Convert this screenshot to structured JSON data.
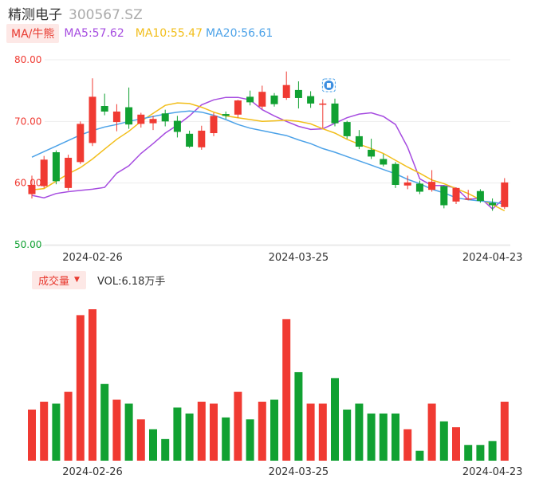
{
  "stock": {
    "name": "精测电子",
    "code": "300567.SZ"
  },
  "ma": {
    "tag": "MA/牛熊",
    "ma5": "MA5:57.62",
    "ma10": "MA10:55.47",
    "ma20": "MA20:56.61"
  },
  "volume": {
    "tag": "成交量",
    "label": "VOL:6.18万手"
  },
  "colors": {
    "up": "#f03a32",
    "down": "#11a132",
    "ma5": "#a64ce0",
    "ma10": "#f2be1a",
    "ma20": "#4ca2e8",
    "ma_tag_bg": "#fde8e6",
    "ma_tag_text": "#e83a30"
  },
  "chart_data": [
    {
      "type": "candlestick",
      "y_tick_labels": [
        "80.00",
        "70.00",
        "60.00",
        "50.00"
      ],
      "y_ticks": [
        80,
        70,
        60,
        50
      ],
      "ylim": [
        50,
        80
      ],
      "x_tick_labels": [
        "2024-02-26",
        "2024-03-25",
        "2024-04-23"
      ],
      "x_tick_indices": [
        5,
        22,
        38
      ],
      "icon": "news-marker-icon",
      "candles": [
        {
          "o": 58.2,
          "h": 61.2,
          "l": 57.5,
          "c": 59.7
        },
        {
          "o": 59.5,
          "h": 64.4,
          "l": 59.2,
          "c": 63.8
        },
        {
          "o": 65.0,
          "h": 65.3,
          "l": 59.8,
          "c": 60.3
        },
        {
          "o": 59.2,
          "h": 64.6,
          "l": 58.8,
          "c": 64.1
        },
        {
          "o": 63.4,
          "h": 70.0,
          "l": 63.1,
          "c": 69.6
        },
        {
          "o": 66.5,
          "h": 77.0,
          "l": 66.0,
          "c": 74.0
        },
        {
          "o": 72.5,
          "h": 74.5,
          "l": 71.0,
          "c": 71.6
        },
        {
          "o": 69.9,
          "h": 72.8,
          "l": 68.4,
          "c": 71.6
        },
        {
          "o": 72.3,
          "h": 75.5,
          "l": 68.8,
          "c": 69.5
        },
        {
          "o": 69.6,
          "h": 71.4,
          "l": 69.0,
          "c": 71.1
        },
        {
          "o": 69.7,
          "h": 70.9,
          "l": 68.6,
          "c": 70.4
        },
        {
          "o": 71.3,
          "h": 71.9,
          "l": 69.2,
          "c": 70.0
        },
        {
          "o": 70.1,
          "h": 70.9,
          "l": 67.4,
          "c": 68.3
        },
        {
          "o": 68.0,
          "h": 68.5,
          "l": 65.7,
          "c": 65.9
        },
        {
          "o": 65.8,
          "h": 69.3,
          "l": 65.4,
          "c": 68.5
        },
        {
          "o": 68.1,
          "h": 71.4,
          "l": 67.6,
          "c": 70.9
        },
        {
          "o": 71.2,
          "h": 71.6,
          "l": 70.4,
          "c": 70.9
        },
        {
          "o": 71.1,
          "h": 73.5,
          "l": 70.6,
          "c": 73.4
        },
        {
          "o": 74.0,
          "h": 75.0,
          "l": 72.6,
          "c": 73.1
        },
        {
          "o": 72.4,
          "h": 75.8,
          "l": 72.0,
          "c": 74.8
        },
        {
          "o": 74.2,
          "h": 74.6,
          "l": 72.4,
          "c": 72.8
        },
        {
          "o": 73.8,
          "h": 78.1,
          "l": 73.5,
          "c": 75.9
        },
        {
          "o": 75.1,
          "h": 76.5,
          "l": 72.1,
          "c": 73.8
        },
        {
          "o": 74.1,
          "h": 74.9,
          "l": 72.2,
          "c": 72.9
        },
        {
          "o": 72.7,
          "h": 73.6,
          "l": 68.9,
          "c": 72.9
        },
        {
          "o": 72.9,
          "h": 73.7,
          "l": 69.2,
          "c": 69.7
        },
        {
          "o": 69.9,
          "h": 70.1,
          "l": 67.2,
          "c": 67.6
        },
        {
          "o": 67.6,
          "h": 68.6,
          "l": 65.5,
          "c": 65.9
        },
        {
          "o": 65.4,
          "h": 67.2,
          "l": 63.9,
          "c": 64.3
        },
        {
          "o": 63.9,
          "h": 64.7,
          "l": 62.7,
          "c": 63.0
        },
        {
          "o": 63.1,
          "h": 63.4,
          "l": 59.2,
          "c": 59.7
        },
        {
          "o": 59.6,
          "h": 61.2,
          "l": 59.0,
          "c": 60.1
        },
        {
          "o": 59.9,
          "h": 60.4,
          "l": 58.2,
          "c": 58.6
        },
        {
          "o": 58.9,
          "h": 62.1,
          "l": 58.6,
          "c": 60.2
        },
        {
          "o": 59.5,
          "h": 59.6,
          "l": 55.9,
          "c": 56.4
        },
        {
          "o": 57.0,
          "h": 59.3,
          "l": 56.6,
          "c": 59.2
        },
        {
          "o": 57.4,
          "h": 58.9,
          "l": 57.2,
          "c": 57.5
        },
        {
          "o": 58.7,
          "h": 59.0,
          "l": 56.8,
          "c": 57.1
        },
        {
          "o": 56.8,
          "h": 57.5,
          "l": 55.5,
          "c": 56.4
        },
        {
          "o": 56.1,
          "h": 60.8,
          "l": 55.8,
          "c": 60.1
        }
      ],
      "series": [
        {
          "name": "MA5",
          "values": [
            58.0,
            57.6,
            58.3,
            58.6,
            58.8,
            59.0,
            59.3,
            61.6,
            62.8,
            64.8,
            66.4,
            68.1,
            69.4,
            70.9,
            72.7,
            73.5,
            73.9,
            73.9,
            73.5,
            71.9,
            70.9,
            70.0,
            69.2,
            68.7,
            68.8,
            69.7,
            70.6,
            71.2,
            71.4,
            70.8,
            69.5,
            65.8,
            60.7,
            59.6,
            59.6,
            59.2,
            57.3,
            57.6,
            55.8,
            57.6
          ]
        },
        {
          "name": "MA10",
          "values": [
            58.9,
            59.1,
            60.3,
            61.5,
            62.5,
            63.9,
            65.5,
            67.1,
            68.4,
            70.0,
            71.3,
            72.6,
            73.0,
            72.9,
            72.3,
            71.5,
            70.9,
            70.6,
            70.3,
            70.0,
            70.1,
            70.2,
            70.0,
            69.6,
            68.8,
            68.1,
            67.1,
            66.3,
            65.6,
            64.8,
            63.7,
            62.6,
            61.6,
            60.5,
            59.9,
            59.1,
            58.3,
            57.3,
            56.5,
            55.5
          ]
        },
        {
          "name": "MA20",
          "values": [
            64.2,
            65.1,
            66.0,
            66.9,
            67.8,
            68.5,
            69.1,
            69.5,
            70.0,
            70.4,
            70.8,
            71.2,
            71.5,
            71.7,
            71.5,
            71.0,
            70.3,
            69.5,
            68.9,
            68.5,
            68.1,
            67.7,
            67.0,
            66.4,
            65.6,
            65.0,
            64.3,
            63.6,
            62.9,
            62.2,
            61.5,
            60.6,
            59.9,
            59.0,
            58.4,
            57.6,
            57.3,
            57.1,
            56.9,
            56.6
          ]
        }
      ]
    },
    {
      "type": "bar",
      "label": "VOL:6.18万手",
      "x_tick_labels": [
        "2024-02-26",
        "2024-03-25",
        "2024-04-23"
      ],
      "x_tick_indices": [
        5,
        22,
        38
      ],
      "values": [
        2.6,
        3.0,
        2.9,
        3.5,
        7.4,
        7.7,
        3.9,
        3.1,
        2.9,
        2.1,
        1.6,
        1.1,
        2.7,
        2.4,
        3.0,
        2.9,
        2.2,
        3.5,
        2.1,
        3.0,
        3.1,
        7.2,
        4.5,
        2.9,
        2.9,
        4.2,
        2.6,
        2.9,
        2.4,
        2.4,
        2.4,
        1.6,
        0.5,
        2.9,
        2.0,
        1.7,
        0.8,
        0.8,
        1.0,
        3.0
      ],
      "up": [
        true,
        true,
        false,
        true,
        true,
        true,
        false,
        true,
        false,
        true,
        false,
        false,
        false,
        false,
        true,
        true,
        false,
        true,
        false,
        true,
        false,
        true,
        false,
        true,
        true,
        false,
        false,
        false,
        false,
        false,
        false,
        true,
        false,
        true,
        false,
        true,
        false,
        false,
        false,
        true
      ]
    }
  ]
}
